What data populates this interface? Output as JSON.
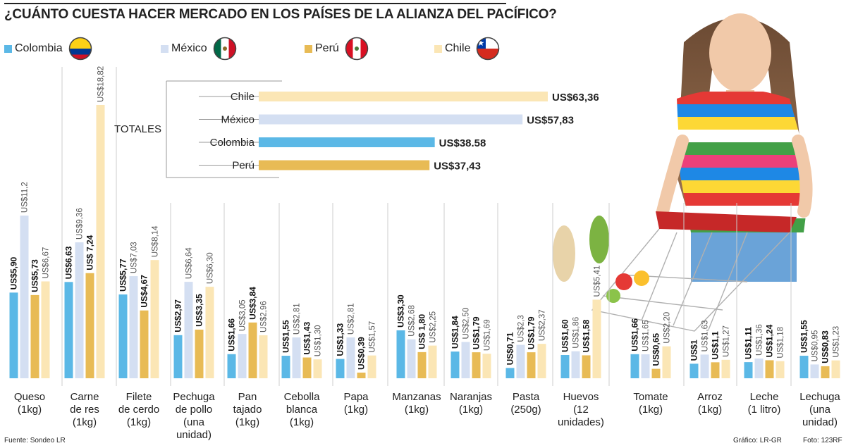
{
  "title": "¿CUÁNTO CUESTA HACER MERCADO EN LOS PAÍSES DE LA ALIANZA DEL PACÍFICO?",
  "legend": [
    {
      "label": "Colombia",
      "color": "#5bb8e6",
      "flag": "colombia-flag-icon"
    },
    {
      "label": "México",
      "color": "#d4dff2",
      "flag": "mexico-flag-icon"
    },
    {
      "label": "Perú",
      "color": "#e8bb55",
      "flag": "peru-flag-icon"
    },
    {
      "label": "Chile",
      "color": "#fbe6b5",
      "flag": "chile-flag-icon"
    }
  ],
  "source": "Fuente: Sondeo LR",
  "credit_graphic": "Gráfico: LR-GR",
  "credit_photo": "Foto: 123RF",
  "photo_icon": "shopper-with-cart-photo-icon",
  "chart_data": [
    {
      "type": "bar",
      "title": "TOTALES",
      "orientation": "horizontal",
      "categories": [
        "Chile",
        "México",
        "Colombia",
        "Perú"
      ],
      "values": [
        63.36,
        57.83,
        38.58,
        37.43
      ],
      "labels": [
        "US$63,36",
        "US$57,83",
        "US$38.58",
        "US$37,43"
      ],
      "colors": [
        "#fbe6b5",
        "#d4dff2",
        "#5bb8e6",
        "#e8bb55"
      ]
    },
    {
      "type": "bar",
      "orientation": "vertical",
      "series_order": [
        "Colombia",
        "México",
        "Perú",
        "Chile"
      ],
      "colors": [
        "#5bb8e6",
        "#d4dff2",
        "#e8bb55",
        "#fbe6b5"
      ],
      "categories": [
        {
          "label": [
            "Queso",
            "(1kg)"
          ],
          "values": [
            5.9,
            11.2,
            5.73,
            6.67
          ],
          "labels": [
            "US$5,90",
            "US$11,2",
            "US$5,73",
            "US$6,67"
          ]
        },
        {
          "label": [
            "Carne",
            "de res",
            "(1kg)"
          ],
          "values": [
            6.63,
            9.36,
            7.24,
            18.82
          ],
          "labels": [
            "US$6,63",
            "US$9,36",
            "US$ 7,24",
            "US$18,82"
          ]
        },
        {
          "label": [
            "Filete",
            "de cerdo",
            "(1kg)"
          ],
          "values": [
            5.77,
            7.03,
            4.67,
            8.14
          ],
          "labels": [
            "US$5,77",
            "US$7,03",
            "US$4,67",
            "US$8,14"
          ]
        },
        {
          "label": [
            "Pechuga",
            "de pollo",
            "(una",
            "unidad)"
          ],
          "values": [
            2.97,
            6.64,
            3.35,
            6.3
          ],
          "labels": [
            "US$2,97",
            "US$6,64",
            "US$3,35",
            "US$6,30"
          ]
        },
        {
          "label": [
            "Pan",
            "tajado",
            "(1kg)"
          ],
          "values": [
            1.66,
            3.05,
            3.84,
            2.96
          ],
          "labels": [
            "US$1,66",
            "US$3,05",
            "US$3,84",
            "US$2,96"
          ]
        },
        {
          "label": [
            "Cebolla",
            "blanca",
            "(1kg)"
          ],
          "values": [
            1.55,
            2.81,
            1.43,
            1.3
          ],
          "labels": [
            "US$1,55",
            "US$2,81",
            "US$1,43",
            "US$1,30"
          ]
        },
        {
          "label": [
            "Papa",
            "(1kg)"
          ],
          "values": [
            1.33,
            2.81,
            0.39,
            1.57
          ],
          "labels": [
            "US$1,33",
            "US$2,81",
            "US$0,39",
            "US$1,57"
          ]
        },
        {
          "label": [
            "Manzanas",
            "(1kg)"
          ],
          "values": [
            3.3,
            2.68,
            1.8,
            2.25
          ],
          "labels": [
            "US$3,30",
            "US$2,68",
            "US$ 1,80",
            "US$2,25"
          ]
        },
        {
          "label": [
            "Naranjas",
            "(1kg)"
          ],
          "values": [
            1.84,
            2.5,
            1.79,
            1.69
          ],
          "labels": [
            "US$1,84",
            "US$2,50",
            "US$1,79",
            "US$1,69"
          ]
        },
        {
          "label": [
            "Pasta",
            "(250g)"
          ],
          "values": [
            0.71,
            2.3,
            1.79,
            2.37
          ],
          "labels": [
            "US$0,71",
            "US$2,3",
            "US$1,79",
            "US$2,37"
          ]
        },
        {
          "label": [
            "Huevos",
            "(12",
            "unidades)"
          ],
          "values": [
            1.6,
            1.86,
            1.58,
            5.41
          ],
          "labels": [
            "US$1,60",
            "US$1,86",
            "US$1,58",
            "US$5,41"
          ]
        },
        {
          "label": [
            "Tomate",
            "(1kg)"
          ],
          "values": [
            1.66,
            1.65,
            0.65,
            2.2
          ],
          "labels": [
            "US$1,66",
            "US$1,65",
            "US$0,65",
            "US$2,20"
          ]
        },
        {
          "label": [
            "Arroz",
            "(1kg)"
          ],
          "values": [
            1.0,
            1.63,
            1.1,
            1.27
          ],
          "labels": [
            "US$1",
            "US$1,63",
            "US$1,1",
            "US$1,27"
          ]
        },
        {
          "label": [
            "Leche",
            "(1 litro)"
          ],
          "values": [
            1.11,
            1.36,
            1.24,
            1.18
          ],
          "labels": [
            "US$1,11",
            "US$1,36",
            "US$1,24",
            "US$1,18"
          ]
        },
        {
          "label": [
            "Lechuga",
            "(una",
            "unidad)"
          ],
          "values": [
            1.55,
            0.95,
            0.83,
            1.23
          ],
          "labels": [
            "US$1,55",
            "US$0,95",
            "US$0,83",
            "US$1,23"
          ]
        }
      ]
    }
  ]
}
